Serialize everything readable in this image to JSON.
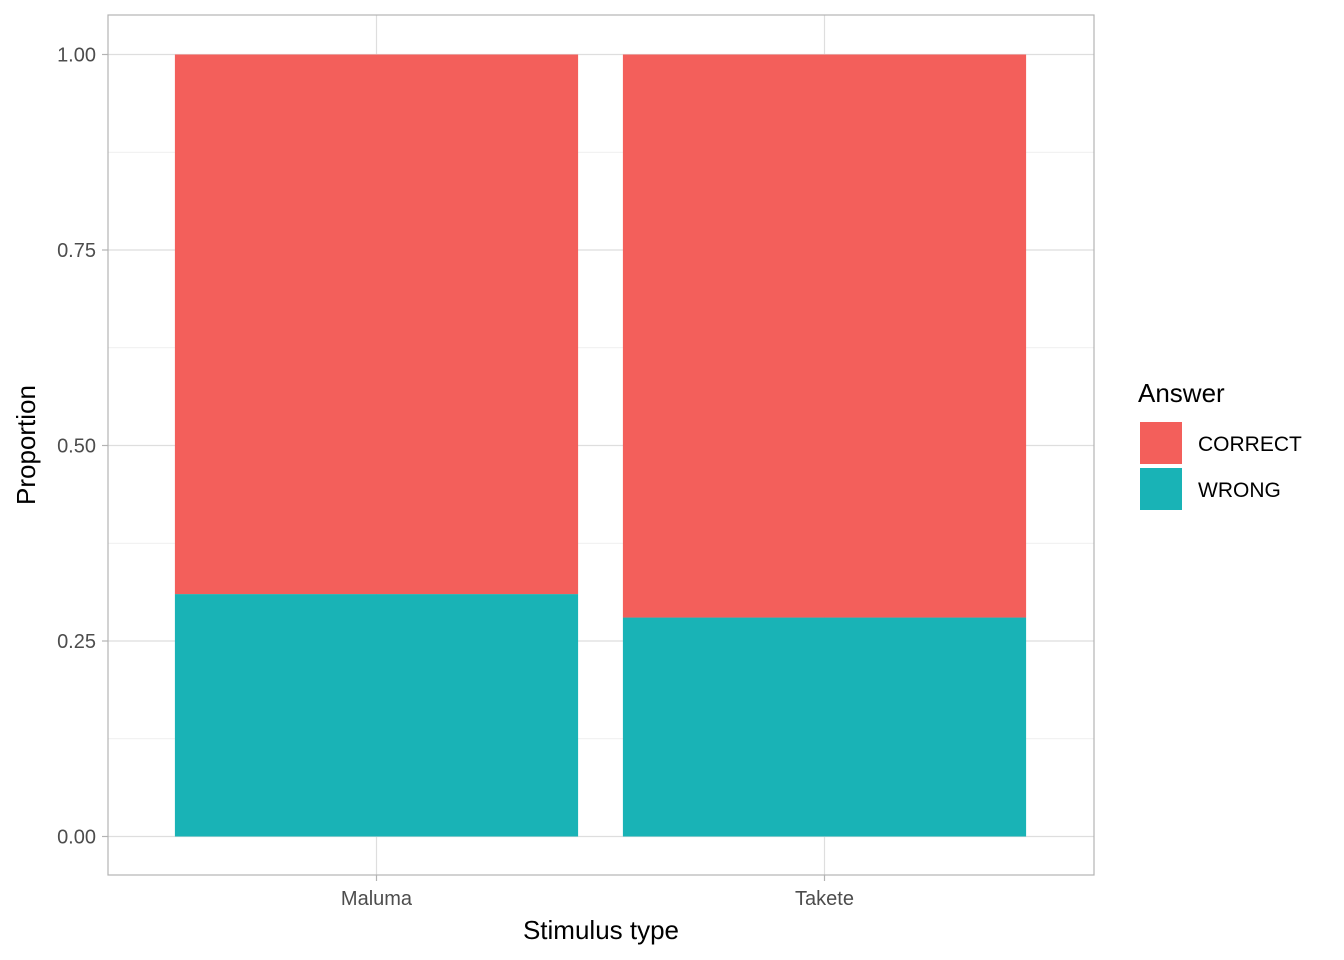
{
  "chart_data": {
    "type": "bar",
    "stacked": true,
    "position": "fill",
    "title": "",
    "xlabel": "Stimulus type",
    "ylabel": "Proportion",
    "categories": [
      "Maluma",
      "Takete"
    ],
    "ylim": [
      0,
      1
    ],
    "y_ticks": [
      "0.00",
      "0.25",
      "0.50",
      "0.75",
      "1.00"
    ],
    "grid": true,
    "legend": {
      "title": "Answer",
      "placement": "right"
    },
    "series": [
      {
        "name": "CORRECT",
        "color": "#F35F5B",
        "values": [
          0.69,
          0.72
        ]
      },
      {
        "name": "WRONG",
        "color": "#19B3B6",
        "values": [
          0.31,
          0.28
        ]
      }
    ]
  }
}
